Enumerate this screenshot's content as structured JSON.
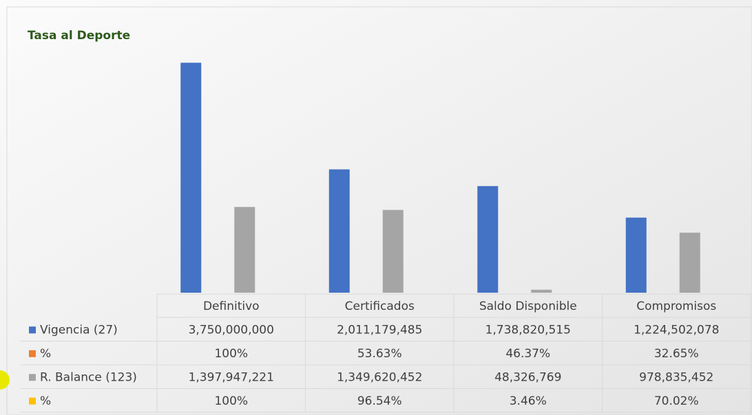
{
  "chart_data": {
    "type": "bar",
    "title": "Tasa al Deporte",
    "categories": [
      "Definitivo",
      "Certificados",
      "Saldo Disponible",
      "Compromisos"
    ],
    "series": [
      {
        "name": "Vigencia (27)",
        "color": "#4472c4",
        "values": [
          3750000000,
          2011179485,
          1738820515,
          1224502078
        ],
        "value_labels": [
          "3,750,000,000",
          "2,011,179,485",
          "1,738,820,515",
          "1,224,502,078"
        ]
      },
      {
        "name": "%",
        "color": "#ed7d31",
        "values": [
          100,
          53.63,
          46.37,
          32.65
        ],
        "value_labels": [
          "100%",
          "53.63%",
          "46.37%",
          "32.65%"
        ]
      },
      {
        "name": "R. Balance (123)",
        "color": "#a5a5a5",
        "values": [
          1397947221,
          1349620452,
          48326769,
          978835452
        ],
        "value_labels": [
          "1,397,947,221",
          "1,349,620,452",
          "48,326,769",
          "978,835,452"
        ]
      },
      {
        "name": "%",
        "color": "#ffc000",
        "values": [
          100,
          96.54,
          3.46,
          70.02
        ],
        "value_labels": [
          "100%",
          "96.54%",
          "3.46%",
          "70.02%"
        ]
      }
    ],
    "ylim": [
      0,
      4000000000
    ]
  }
}
